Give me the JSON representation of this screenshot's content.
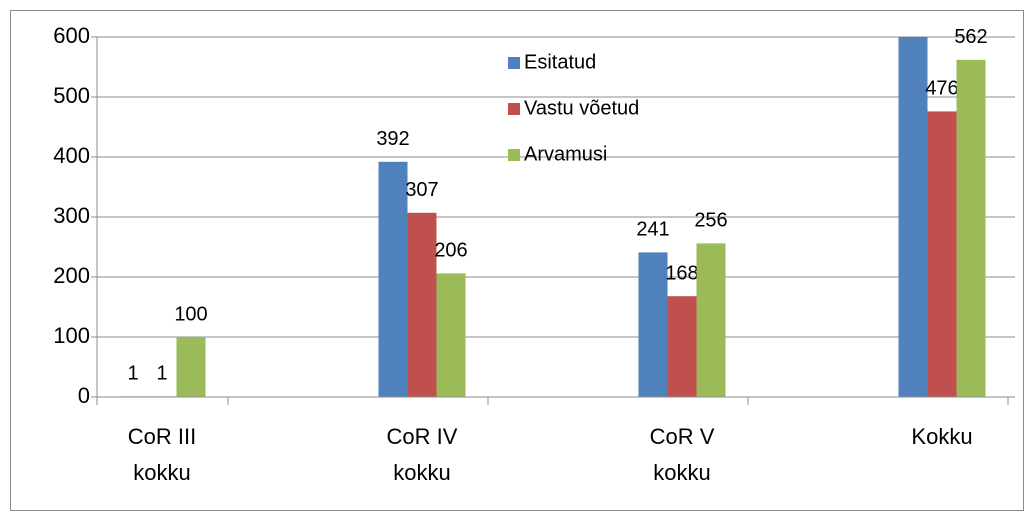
{
  "chart_data": {
    "type": "bar",
    "categories": [
      "CoR III kokku",
      "CoR IV kokku",
      "CoR V kokku",
      "Kokku"
    ],
    "series": [
      {
        "name": "Esitatud",
        "color": "#4f81bd",
        "values": [
          1,
          392,
          241,
          634
        ]
      },
      {
        "name": "Vastu võetud",
        "color": "#c0504d",
        "values": [
          1,
          307,
          168,
          476
        ]
      },
      {
        "name": "Arvamusi",
        "color": "#9bbb59",
        "values": [
          100,
          206,
          256,
          562
        ]
      }
    ],
    "ylim": [
      0,
      600
    ],
    "yticks": [
      0,
      100,
      200,
      300,
      400,
      500,
      600
    ],
    "grid": true,
    "legend": "top"
  }
}
